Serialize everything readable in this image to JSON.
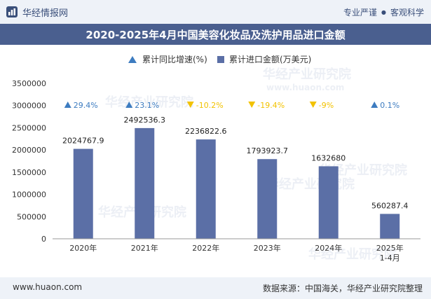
{
  "header": {
    "brand_name": "华经情报网",
    "tagline_left": "专业严谨",
    "tagline_dot": "●",
    "tagline_right": "客观科学"
  },
  "title": "2020-2025年4月中国美容化妆品及洗护用品进口金额",
  "legend": {
    "growth_label": "累计同比增速(%)",
    "amount_label": "累计进口金额(万美元)"
  },
  "colors": {
    "bar": "#5b6fa6",
    "growth_up": "#3d7cc0",
    "growth_down": "#f2c200",
    "title_bg": "#4a5f8f"
  },
  "watermarks": [
    "华经产业研究院",
    "www.huaon.com"
  ],
  "chart_data": {
    "type": "bar",
    "categories": [
      "2020年",
      "2021年",
      "2022年",
      "2023年",
      "2024年",
      "2025年\n1-4月"
    ],
    "series": [
      {
        "name": "累计进口金额(万美元)",
        "values": [
          2024767.9,
          2492536.3,
          2236822.6,
          1793923.7,
          1632680,
          560287.4
        ],
        "labels": [
          "2024767.9",
          "2492536.3",
          "2236822.6",
          "1793923.7",
          "1632680",
          "560287.4"
        ]
      },
      {
        "name": "累计同比增速(%)",
        "values": [
          29.4,
          23.1,
          -10.2,
          -19.4,
          -9,
          0.1
        ],
        "labels": [
          "29.4%",
          "23.1%",
          "-10.2%",
          "-19.4%",
          "-9%",
          "0.1%"
        ]
      }
    ],
    "yticks": [
      "0",
      "500000",
      "1000000",
      "1500000",
      "2000000",
      "2500000",
      "3000000",
      "3500000"
    ],
    "ylim": [
      0,
      3500000
    ],
    "grid": false,
    "legend_position": "top"
  },
  "footer": {
    "url": "www.huaon.com",
    "source": "数据来源：中国海关，华经产业研究院整理"
  }
}
